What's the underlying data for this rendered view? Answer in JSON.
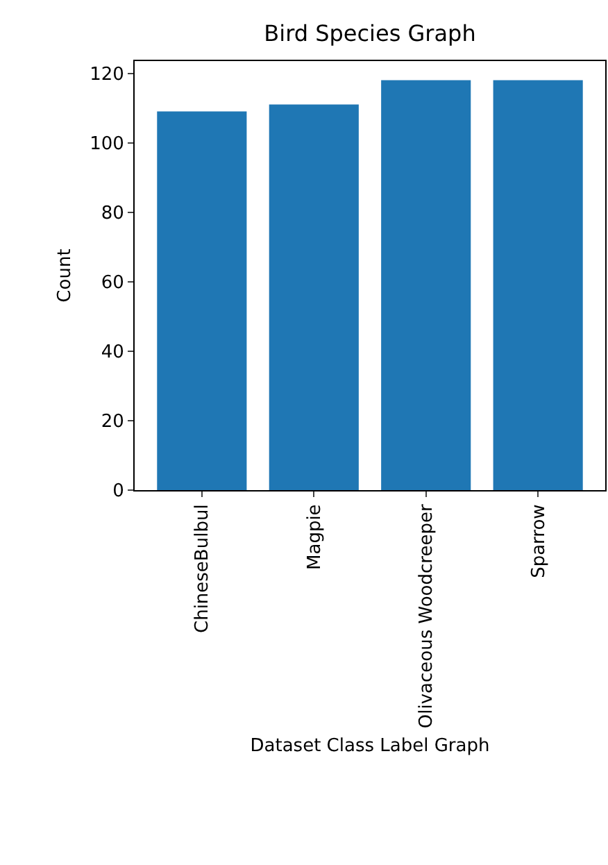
{
  "chart_data": {
    "type": "bar",
    "title": "Bird Species Graph",
    "xlabel": "Dataset Class Label Graph",
    "ylabel": "Count",
    "categories": [
      "ChineseBulbul",
      "Magpie",
      "Olivaceous Woodcreeper",
      "Sparrow"
    ],
    "values": [
      109,
      111,
      118,
      118
    ],
    "color": "#1f77b4",
    "ylim": [
      0,
      123.5
    ],
    "yticks": [
      0,
      20,
      40,
      60,
      80,
      100,
      120
    ]
  }
}
